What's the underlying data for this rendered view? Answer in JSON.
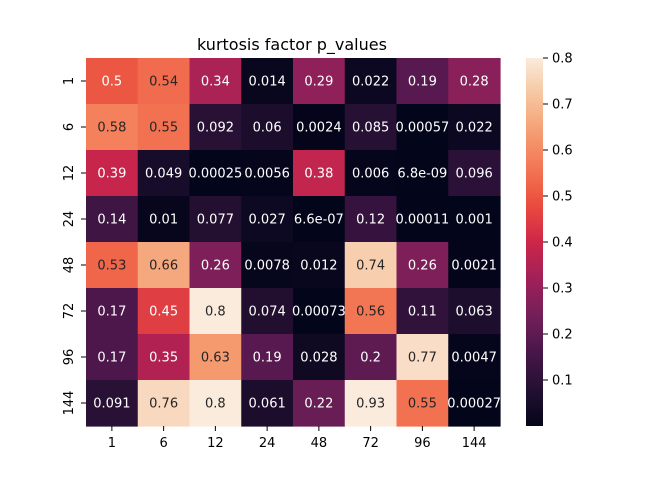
{
  "chart_data": {
    "type": "heatmap",
    "title": "kurtosis factor p_values",
    "x_labels": [
      "1",
      "6",
      "12",
      "24",
      "48",
      "72",
      "96",
      "144"
    ],
    "y_labels": [
      "1",
      "6",
      "12",
      "24",
      "48",
      "72",
      "96",
      "144"
    ],
    "values": [
      [
        0.5,
        0.54,
        0.34,
        0.014,
        0.29,
        0.022,
        0.19,
        0.28
      ],
      [
        0.58,
        0.55,
        0.092,
        0.06,
        0.0024,
        0.085,
        0.00057,
        0.022
      ],
      [
        0.39,
        0.049,
        0.00025,
        0.0056,
        0.38,
        0.006,
        6.8e-09,
        0.096
      ],
      [
        0.14,
        0.01,
        0.077,
        0.027,
        6.6e-07,
        0.12,
        0.00011,
        0.001
      ],
      [
        0.53,
        0.66,
        0.26,
        0.0078,
        0.012,
        0.74,
        0.26,
        0.0021
      ],
      [
        0.17,
        0.45,
        0.8,
        0.074,
        0.00073,
        0.56,
        0.11,
        0.063
      ],
      [
        0.17,
        0.35,
        0.63,
        0.19,
        0.028,
        0.2,
        0.77,
        0.0047
      ],
      [
        0.091,
        0.76,
        0.8,
        0.061,
        0.22,
        0.93,
        0.55,
        0.00027
      ]
    ],
    "annotations": [
      [
        "0.5",
        "0.54",
        "0.34",
        "0.014",
        "0.29",
        "0.022",
        "0.19",
        "0.28"
      ],
      [
        "0.58",
        "0.55",
        "0.092",
        "0.06",
        "0.0024",
        "0.085",
        "0.00057",
        "0.022"
      ],
      [
        "0.39",
        "0.049",
        "0.00025",
        "0.0056",
        "0.38",
        "0.006",
        "6.8e-09",
        "0.096"
      ],
      [
        "0.14",
        "0.01",
        "0.077",
        "0.027",
        "6.6e-07",
        "0.12",
        "0.00011",
        "0.001"
      ],
      [
        "0.53",
        "0.66",
        "0.26",
        "0.0078",
        "0.012",
        "0.74",
        "0.26",
        "0.0021"
      ],
      [
        "0.17",
        "0.45",
        "0.8",
        "0.074",
        "0.00073",
        "0.56",
        "0.11",
        "0.063"
      ],
      [
        "0.17",
        "0.35",
        "0.63",
        "0.19",
        "0.028",
        "0.2",
        "0.77",
        "0.0047"
      ],
      [
        "0.091",
        "0.76",
        "0.8",
        "0.061",
        "0.22",
        "0.93",
        "0.55",
        "0.00027"
      ]
    ],
    "colormap": "rocket",
    "color_range": [
      0,
      0.8
    ],
    "colorbar_ticks": [
      0.1,
      0.2,
      0.3,
      0.4,
      0.5,
      0.6,
      0.7,
      0.8
    ],
    "colorbar_tick_labels": [
      "0.1",
      "0.2",
      "0.3",
      "0.4",
      "0.5",
      "0.6",
      "0.7",
      "0.8"
    ],
    "legend_position": "right"
  }
}
